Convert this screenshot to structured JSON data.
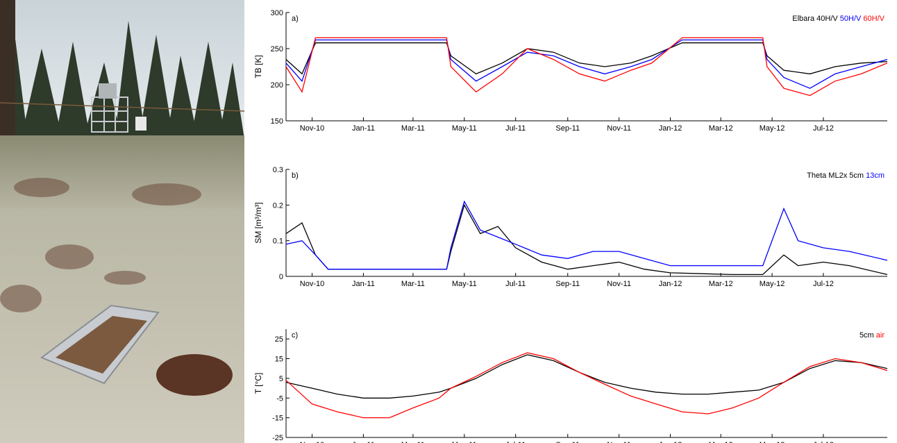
{
  "photo": {
    "description_name": "field-site-photo"
  },
  "months": [
    "Nov-10",
    "Jan-11",
    "Mar-11",
    "May-11",
    "Jul-11",
    "Sep-11",
    "Nov-11",
    "Jan-12",
    "Mar-12",
    "May-12",
    "Jul-12"
  ],
  "chart_data": [
    {
      "type": "line",
      "panel_label": "a)",
      "ylabel": "TB [K]",
      "ylim": [
        150,
        300
      ],
      "yticks": [
        150,
        200,
        250,
        300
      ],
      "x_range": [
        "2010-10-01",
        "2012-09-15"
      ],
      "legend": {
        "title": "Elbara",
        "entries": [
          "40H/V",
          "50H/V",
          "60H/V"
        ],
        "colors": [
          "#000000",
          "#0000ff",
          "#ff0000"
        ],
        "placement": "top-right"
      },
      "series": [
        {
          "name": "40H/V",
          "color": "#000000",
          "x": [
            "2010-10-01",
            "2010-10-20",
            "2010-11-05",
            "2011-01-01",
            "2011-03-01",
            "2011-04-10",
            "2011-04-15",
            "2011-05-15",
            "2011-06-15",
            "2011-07-15",
            "2011-08-15",
            "2011-09-15",
            "2011-10-15",
            "2011-11-15",
            "2011-12-10",
            "2012-01-15",
            "2012-03-15",
            "2012-04-20",
            "2012-04-25",
            "2012-05-15",
            "2012-06-15",
            "2012-07-15",
            "2012-08-15",
            "2012-09-15"
          ],
          "y": [
            235,
            215,
            258,
            258,
            258,
            258,
            240,
            215,
            230,
            250,
            245,
            230,
            225,
            230,
            240,
            258,
            258,
            258,
            240,
            220,
            215,
            225,
            230,
            232
          ]
        },
        {
          "name": "50H/V",
          "color": "#0000ff",
          "x": [
            "2010-10-01",
            "2010-10-20",
            "2010-11-05",
            "2011-01-01",
            "2011-03-01",
            "2011-04-10",
            "2011-04-15",
            "2011-05-15",
            "2011-06-15",
            "2011-07-15",
            "2011-08-15",
            "2011-09-15",
            "2011-10-15",
            "2011-11-15",
            "2011-12-10",
            "2012-01-15",
            "2012-03-15",
            "2012-04-20",
            "2012-04-25",
            "2012-05-15",
            "2012-06-15",
            "2012-07-15",
            "2012-08-15",
            "2012-09-15"
          ],
          "y": [
            230,
            205,
            262,
            262,
            262,
            262,
            235,
            205,
            225,
            245,
            240,
            225,
            215,
            225,
            235,
            262,
            262,
            262,
            235,
            210,
            195,
            215,
            225,
            235
          ]
        },
        {
          "name": "60H/V",
          "color": "#ff0000",
          "x": [
            "2010-10-01",
            "2010-10-20",
            "2010-11-05",
            "2011-01-01",
            "2011-03-01",
            "2011-04-10",
            "2011-04-15",
            "2011-05-15",
            "2011-06-15",
            "2011-07-15",
            "2011-08-15",
            "2011-09-15",
            "2011-10-15",
            "2011-11-15",
            "2011-12-10",
            "2012-01-15",
            "2012-03-15",
            "2012-04-20",
            "2012-04-25",
            "2012-05-15",
            "2012-06-15",
            "2012-07-15",
            "2012-08-15",
            "2012-09-15"
          ],
          "y": [
            225,
            190,
            265,
            265,
            265,
            265,
            225,
            190,
            215,
            250,
            235,
            215,
            205,
            220,
            230,
            265,
            265,
            265,
            225,
            195,
            185,
            205,
            215,
            230
          ]
        }
      ]
    },
    {
      "type": "line",
      "panel_label": "b)",
      "ylabel": "SM [m³/m³]",
      "ylim": [
        0,
        0.3
      ],
      "yticks": [
        0,
        0.1,
        0.2,
        0.3
      ],
      "x_range": [
        "2010-10-01",
        "2012-09-15"
      ],
      "legend": {
        "title": "Theta ML2x",
        "entries": [
          "5cm",
          "13cm"
        ],
        "colors": [
          "#000000",
          "#0000ff"
        ],
        "placement": "top-right"
      },
      "series": [
        {
          "name": "5cm",
          "color": "#000000",
          "x": [
            "2010-10-01",
            "2010-10-20",
            "2010-11-05",
            "2010-11-20",
            "2011-01-01",
            "2011-03-01",
            "2011-04-10",
            "2011-04-15",
            "2011-05-01",
            "2011-05-20",
            "2011-06-10",
            "2011-07-01",
            "2011-08-01",
            "2011-09-01",
            "2011-10-01",
            "2011-11-01",
            "2011-12-01",
            "2012-01-01",
            "2012-03-15",
            "2012-04-20",
            "2012-05-15",
            "2012-06-01",
            "2012-07-01",
            "2012-08-01",
            "2012-09-15"
          ],
          "y": [
            0.12,
            0.15,
            0.06,
            0.02,
            0.02,
            0.02,
            0.02,
            0.07,
            0.2,
            0.12,
            0.14,
            0.08,
            0.04,
            0.02,
            0.03,
            0.04,
            0.02,
            0.01,
            0.005,
            0.005,
            0.06,
            0.03,
            0.04,
            0.03,
            0.005
          ]
        },
        {
          "name": "13cm",
          "color": "#0000ff",
          "x": [
            "2010-10-01",
            "2010-10-20",
            "2010-11-05",
            "2010-11-20",
            "2011-01-01",
            "2011-03-01",
            "2011-04-10",
            "2011-04-15",
            "2011-05-01",
            "2011-05-20",
            "2011-06-10",
            "2011-07-01",
            "2011-08-01",
            "2011-09-01",
            "2011-10-01",
            "2011-11-01",
            "2011-12-01",
            "2012-01-01",
            "2012-03-15",
            "2012-04-20",
            "2012-05-15",
            "2012-06-01",
            "2012-07-01",
            "2012-08-01",
            "2012-09-15"
          ],
          "y": [
            0.09,
            0.1,
            0.06,
            0.02,
            0.02,
            0.02,
            0.02,
            0.08,
            0.21,
            0.13,
            0.11,
            0.09,
            0.06,
            0.05,
            0.07,
            0.07,
            0.05,
            0.03,
            0.03,
            0.03,
            0.19,
            0.1,
            0.08,
            0.07,
            0.045
          ]
        }
      ]
    },
    {
      "type": "line",
      "panel_label": "c)",
      "ylabel": "T [°C]",
      "ylim": [
        -25,
        30
      ],
      "yticks": [
        -25,
        -15,
        -5,
        5,
        15,
        25
      ],
      "x_range": [
        "2010-10-01",
        "2012-09-15"
      ],
      "legend": {
        "entries": [
          "5cm",
          "air"
        ],
        "colors": [
          "#000000",
          "#ff0000"
        ],
        "placement": "top-right"
      },
      "series": [
        {
          "name": "5cm",
          "color": "#000000",
          "x": [
            "2010-10-01",
            "2010-11-01",
            "2010-12-01",
            "2011-01-01",
            "2011-02-01",
            "2011-03-01",
            "2011-04-01",
            "2011-04-15",
            "2011-05-15",
            "2011-06-15",
            "2011-07-15",
            "2011-08-15",
            "2011-09-15",
            "2011-10-15",
            "2011-11-15",
            "2011-12-15",
            "2012-01-15",
            "2012-02-15",
            "2012-03-15",
            "2012-04-15",
            "2012-05-15",
            "2012-06-15",
            "2012-07-15",
            "2012-08-15",
            "2012-09-15"
          ],
          "y": [
            3,
            0,
            -3,
            -5,
            -5,
            -4,
            -2,
            0,
            5,
            12,
            17,
            14,
            8,
            3,
            0,
            -2,
            -3,
            -3,
            -2,
            -1,
            3,
            10,
            14,
            13,
            10
          ]
        },
        {
          "name": "air",
          "color": "#ff0000",
          "x": [
            "2010-10-01",
            "2010-11-01",
            "2010-12-01",
            "2011-01-01",
            "2011-02-01",
            "2011-03-01",
            "2011-04-01",
            "2011-04-15",
            "2011-05-15",
            "2011-06-15",
            "2011-07-15",
            "2011-08-15",
            "2011-09-15",
            "2011-10-15",
            "2011-11-15",
            "2011-12-15",
            "2012-01-15",
            "2012-02-15",
            "2012-03-15",
            "2012-04-15",
            "2012-05-15",
            "2012-06-15",
            "2012-07-15",
            "2012-08-15",
            "2012-09-15"
          ],
          "y": [
            4,
            -8,
            -12,
            -15,
            -15,
            -10,
            -5,
            0,
            6,
            13,
            18,
            15,
            8,
            2,
            -4,
            -8,
            -12,
            -13,
            -10,
            -5,
            3,
            11,
            15,
            13,
            9
          ]
        }
      ]
    }
  ]
}
